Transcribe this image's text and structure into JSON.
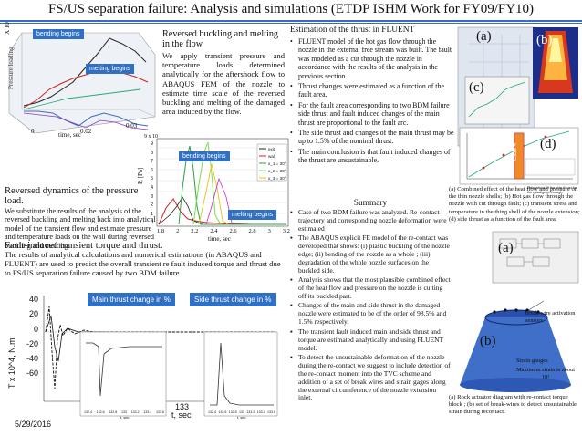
{
  "title": "FS/US separation failure: Analysis and simulations (ETDP ISHM Work for FY09/FY10)",
  "date": "5/29/2016",
  "top_left": {
    "chart_labels": {
      "bending": "bending begins",
      "melting": "melting begins",
      "xaxis": "time, sec",
      "yaxis": "X 10",
      "ylabel_side": "Pressure loading",
      "x_ticks": [
        "0",
        "0.02",
        "0.03"
      ]
    },
    "caption_title": "Reversed dynamics of the pressure load.",
    "caption_body": "We substitute the results of the analysis of the reversed buckling and melting back into analytical model of the transient flow and estimate pressure and temperature loads on the wall during reversed buckling and melting."
  },
  "middle": {
    "heading": "Reversed buckling and melting in the flow",
    "body": "We apply transient pressure and temperature loads determined analytically for the aftershock flow to ABAQUS FEM of the nozzle to estimate time scale of the reversed buckling and melting of the damaged area induced by the flow.",
    "chart_labels": {
      "bending": "bending begins",
      "melting": "melting begins",
      "exp": "9 x 10",
      "yaxis": "P, [Pa]",
      "xaxis": "time, sec",
      "legend": [
        "exit",
        "wall",
        "x_1 = 30°",
        "x_2 = 30°",
        "x_3 = 30°"
      ],
      "x_ticks": [
        "1.8",
        "2",
        "2.2",
        "2.4",
        "2.6",
        "2.8",
        "3",
        "3.2"
      ],
      "y_ticks": [
        "9",
        "8",
        "7",
        "6",
        "5",
        "4",
        "3",
        "2",
        "1",
        "0"
      ]
    }
  },
  "fault_section": {
    "heading": "Fault-induced transient torque and thrust.",
    "body": "The results of analytical calculations and numerical estimations (in ABAQUS and FLUENT) are used to predict the overall transient re fault induced torque and thrust due to FS/US separation failure caused by two BDM failure.",
    "label_main": "Main thrust change in %",
    "label_side": "Side thrust change in %",
    "ylabel": "T x 10^4, N.m",
    "xlabel": "t, sec",
    "x_tick": "133",
    "y_ticks": [
      "40",
      "20",
      "0",
      "-20",
      "-40",
      "-60"
    ],
    "inset_x": [
      "132.4",
      "132.6",
      "132.8",
      "133",
      "133.2",
      "133.4",
      "133.6"
    ],
    "inset_xlabel": "t, sec"
  },
  "fluent": {
    "heading": "Estimation of the thrust in FLUENT",
    "bullets": [
      "FLUENT model of the hot gas flow through the nozzle in the external free stream was built. The fault was modeled as a cut through the nozzle in accordance with the results of the analysis in the previous section.",
      "Thrust changes were estimated as a function of the fault area.",
      "For the fault area corresponding to two BDM failure side thrust and fault induced changes of the main thrust are proportional to the fault arc.",
      "The side thrust and changes of the main thrust may be up to 1.5% of the nominal thrust.",
      "The main conclusion is that fault induced changes of the thrust are unsustainable."
    ],
    "panel_labels": [
      "(a)",
      "(b)",
      "(c)",
      "(d)"
    ],
    "case_label": "Case 4",
    "est_note": "Estimations of the side thrust for the misaligned through.",
    "caption": "(a) Combined effect of the heat flow and pressure on the thin nozzle shells; (b) Hot gas flow through the nozzle with cut through fault; (c) transient stress and temperature in the thing shell of the nozzle extension; (d) side thrust as a function of the fault area."
  },
  "summary": {
    "heading": "Summary",
    "bullets": [
      "Case of two BDM failure was analyzed. Re-contact trajectory and corresponding nozzle deformation were estimated",
      "The ABAQUS explicit FE model of the re-contact was developed that shows: (i) plastic buckling of the nozzle edge; (ii) bending of the nozzle as a whole ; (iii) degradation of the whole nozzle surfaces on the buckled side.",
      "Analysis shows that the most plausible combined effect of the heat flow and pressure on the nozzle is cutting off its buckled part.",
      "Changes of the main and side thrust in the damaged nozzle were estimated to be of the order of 98.5% and 1.5% respectively.",
      "The transient fault induced main and side thrust and torque are estimated analytically and using FLUENT model.",
      "To detect the unsustainable deformation of the nozzle during the re-contact we suggest to include detection of the re-contact moment into the TVC scheme and addition of a set of break wires and strain gages along the external circumference of the nozzle extension inlet."
    ]
  },
  "actuator": {
    "label_a": "(a)",
    "label_b": "(b)",
    "break_wire": "break-wire activation sensors",
    "strain_gauges": "Strain gauges",
    "max_strain": "Maximum strain is about 10²",
    "caption": "(a) Rock actuator diagram with re-contact torque block ; (b) set of break-wires to detect unsustainable strain during recontact."
  },
  "colors": {
    "rule": "#3a6dbf",
    "label_bg": "#2f6fc4",
    "nozzle": "#3f6fc8"
  }
}
